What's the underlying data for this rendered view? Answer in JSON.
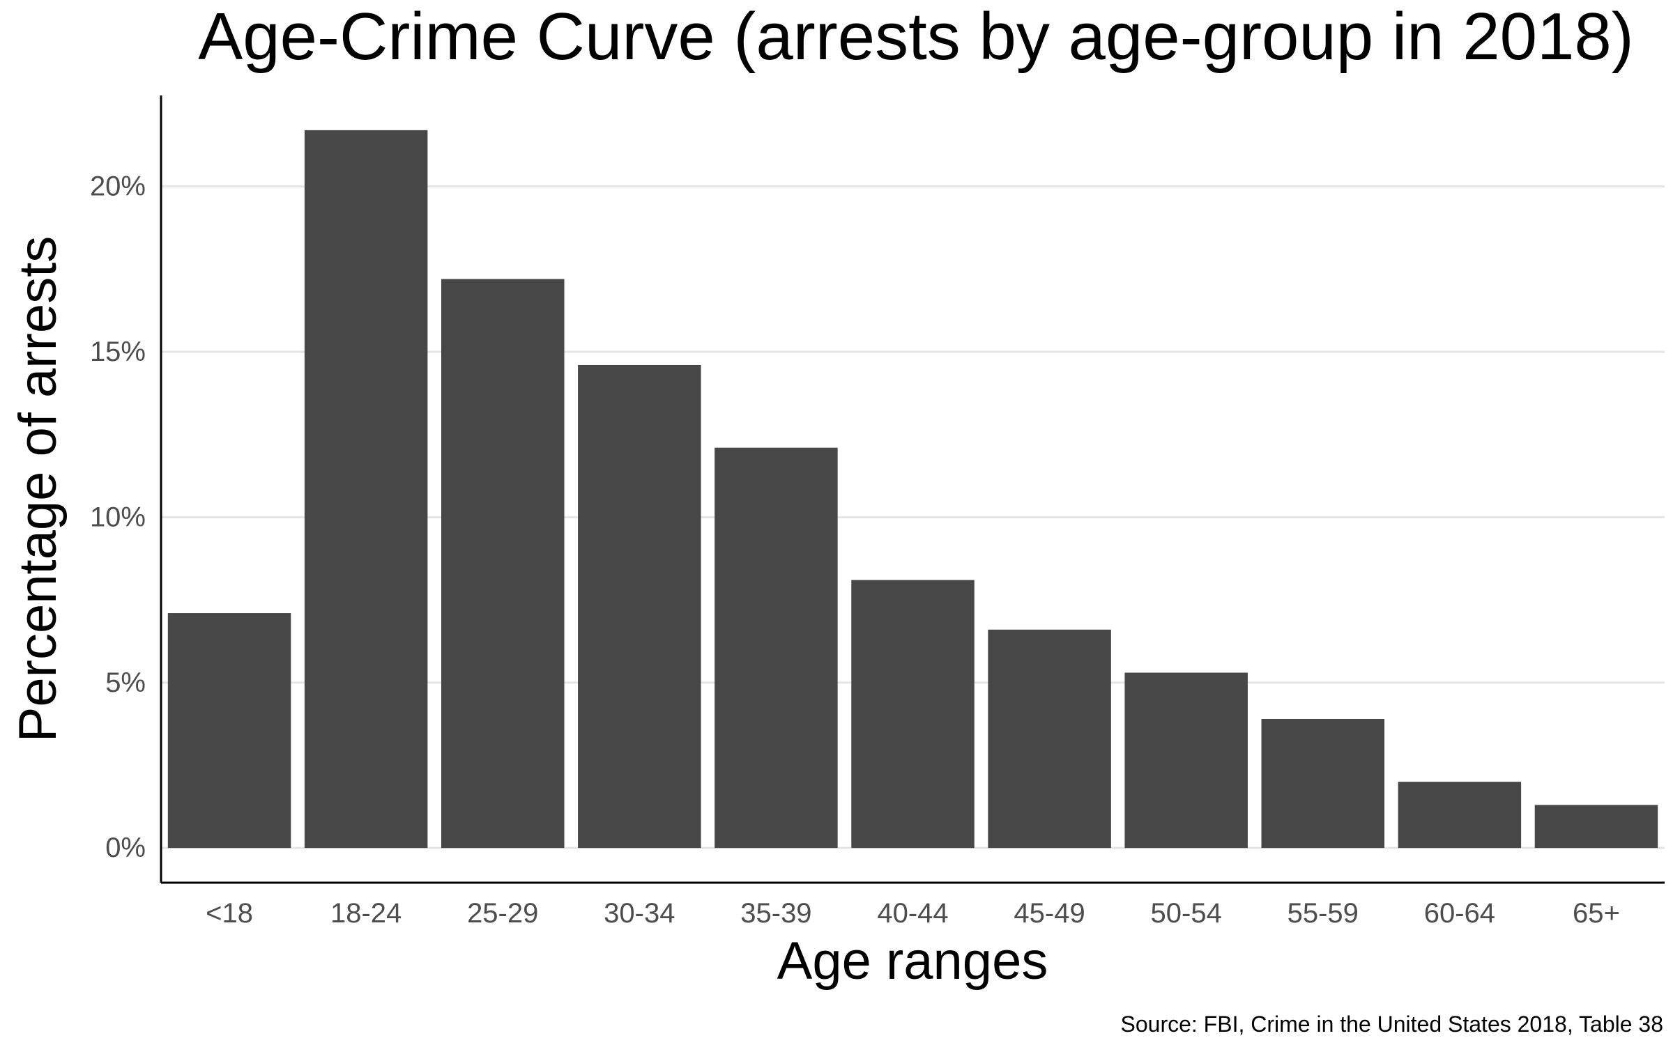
{
  "chart_data": {
    "type": "bar",
    "title": "Age-Crime Curve (arrests by age-group in 2018)",
    "xlabel": "Age ranges",
    "ylabel": "Percentage of arrests",
    "caption": "Source: FBI, Crime in the United States 2018, Table 38",
    "categories": [
      "<18",
      "18-24",
      "25-29",
      "30-34",
      "35-39",
      "40-44",
      "45-49",
      "50-54",
      "55-59",
      "60-64",
      "65+"
    ],
    "values": [
      7.1,
      21.7,
      17.2,
      14.6,
      12.1,
      8.1,
      6.6,
      5.3,
      3.9,
      2.0,
      1.3
    ],
    "y_ticks": [
      0,
      5,
      10,
      15,
      20
    ],
    "y_tick_labels": [
      "0%",
      "5%",
      "10%",
      "15%",
      "20%"
    ],
    "ylim": [
      -1.05,
      22.75
    ],
    "grid": "horizontal major lines",
    "legend": "none",
    "colors": {
      "bar": "#474747",
      "grid": "#e5e5e5",
      "axis": "#000000",
      "tick_label": "#4d4d4d",
      "background": "#ffffff"
    }
  }
}
